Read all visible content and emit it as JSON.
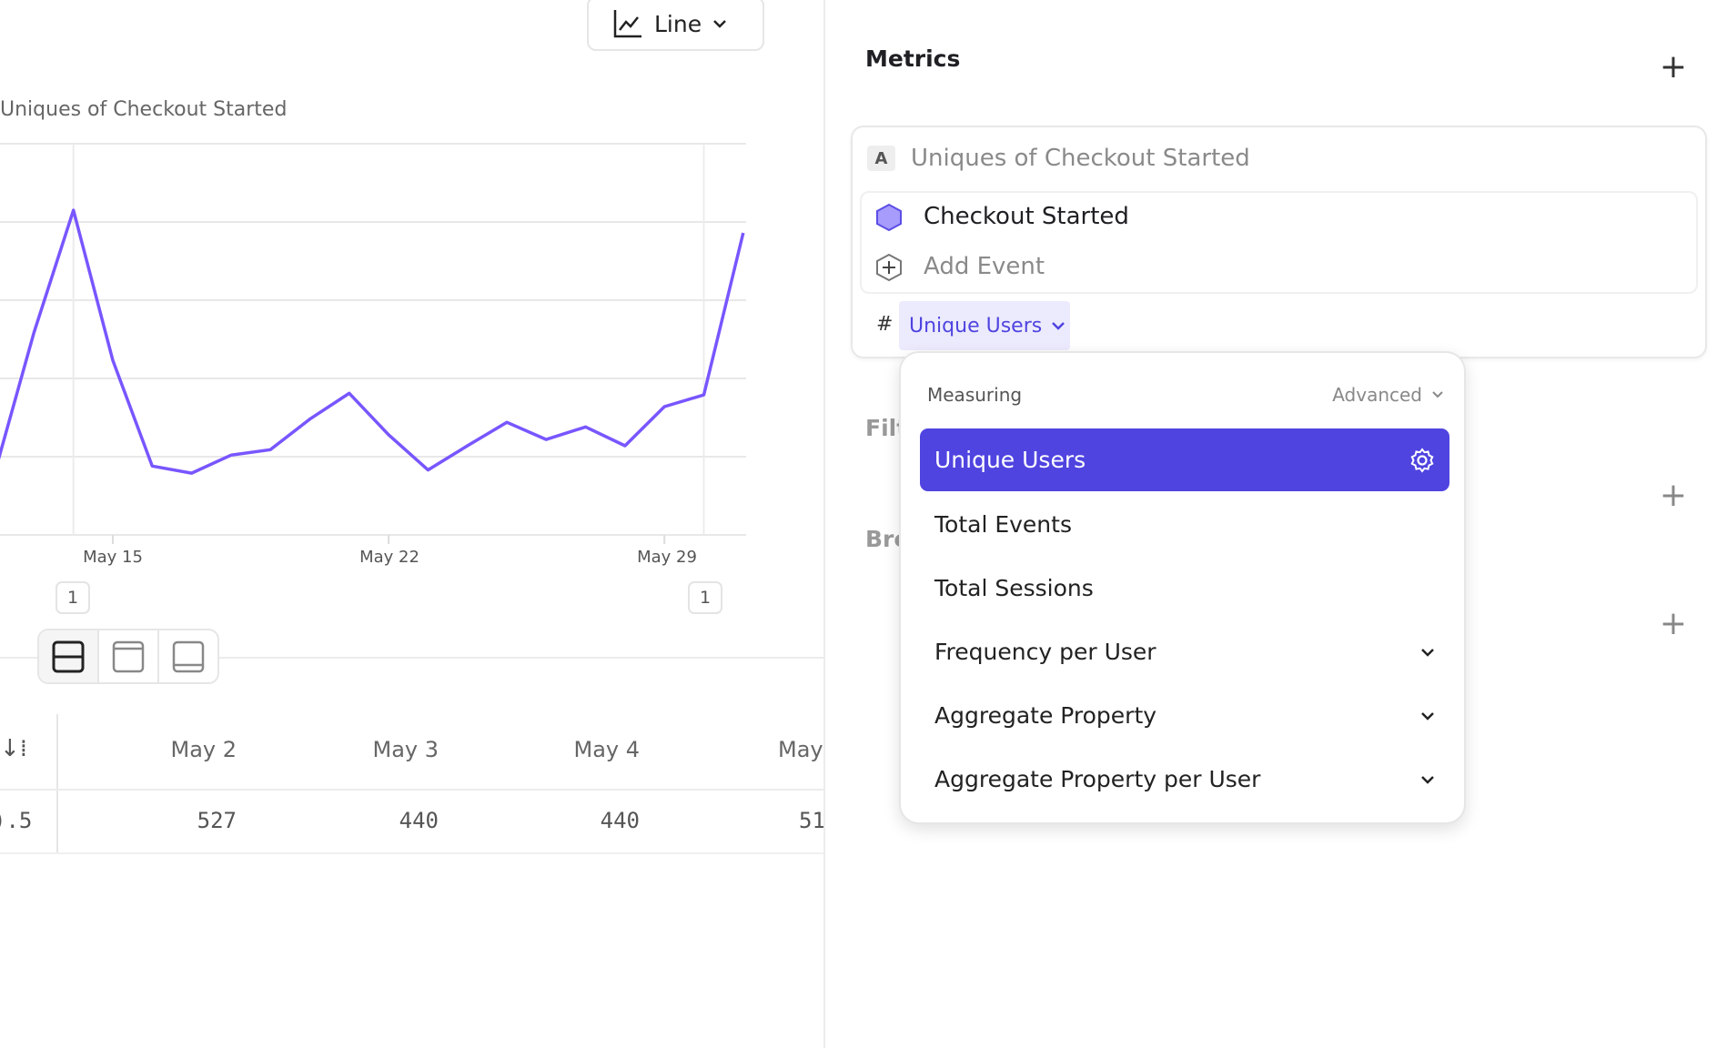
{
  "toolbar": {
    "chart_type": "Line",
    "chart_icon": "line-chart-icon"
  },
  "chart": {
    "title": "Uniques of Checkout Started",
    "x_ticks": [
      "May 15",
      "May 22",
      "May 29"
    ],
    "annotation_badges": [
      "1",
      "1"
    ],
    "line_color": "#7856ff"
  },
  "chart_data": {
    "type": "line",
    "title": "Uniques of Checkout Started",
    "x": [
      "May 12",
      "May 13",
      "May 14",
      "May 15",
      "May 16",
      "May 17",
      "May 18",
      "May 19",
      "May 20",
      "May 21",
      "May 22",
      "May 23",
      "May 24",
      "May 25",
      "May 26",
      "May 27",
      "May 28",
      "May 29",
      "May 30",
      "May 31"
    ],
    "series": [
      {
        "values": [
          0.79,
          2.59,
          4.15,
          2.23,
          0.88,
          0.79,
          1.02,
          1.09,
          1.48,
          1.81,
          1.28,
          0.83,
          1.14,
          1.44,
          1.22,
          1.38,
          1.14,
          1.64,
          1.79,
          3.86
        ]
      }
    ],
    "x_tick_labels": [
      "May 15",
      "May 22",
      "May 29"
    ],
    "ylim": [
      0,
      5
    ],
    "grid": true,
    "note_units": "y axis unlabeled"
  },
  "layout_toggle": {
    "options": [
      "split-view-icon",
      "top-panel-icon",
      "bottom-panel-icon"
    ],
    "selected": 0
  },
  "table": {
    "first_col_partial": ").5",
    "headers": [
      "May 2",
      "May 3",
      "May 4",
      "May"
    ],
    "row": [
      "527",
      "440",
      "440",
      "51"
    ]
  },
  "panel": {
    "metrics_title": "Metrics",
    "metric": {
      "letter": "A",
      "name": "Uniques of Checkout Started",
      "event": "Checkout Started",
      "add_event": "Add Event",
      "measure_prefix": "#",
      "measure": "Unique Users"
    },
    "filter_partial": "Filt",
    "breakdown_partial": "Bre"
  },
  "dropdown": {
    "header": "Measuring",
    "advanced": "Advanced",
    "items": [
      {
        "label": "Unique Users",
        "selected": true
      },
      {
        "label": "Total Events"
      },
      {
        "label": "Total Sessions"
      },
      {
        "label": "Frequency per User",
        "expandable": true
      },
      {
        "label": "Aggregate Property",
        "expandable": true
      },
      {
        "label": "Aggregate Property per User",
        "expandable": true
      }
    ],
    "accent": "#4f44e0"
  }
}
